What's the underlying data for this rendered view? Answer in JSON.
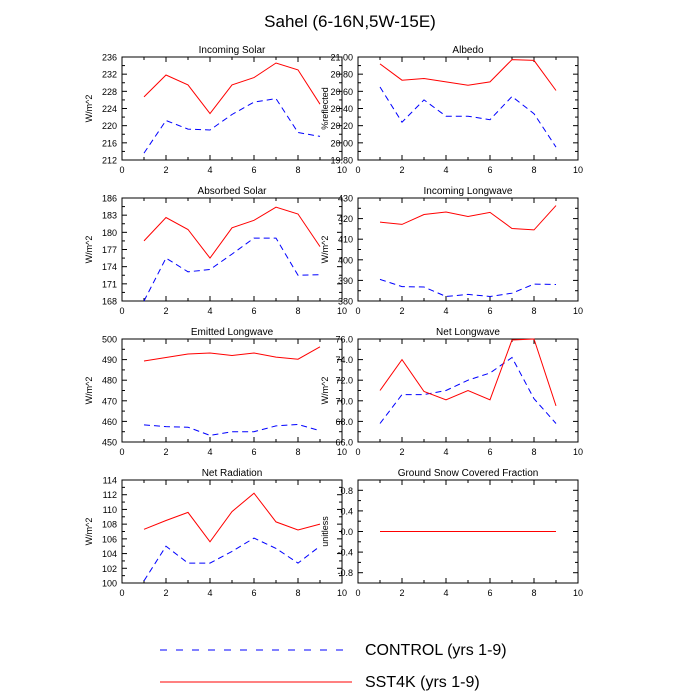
{
  "title": "Sahel (6-16N,5W-15E)",
  "legend": {
    "position": "bottom",
    "entries": [
      {
        "name": "CONTROL (yrs 1-9)",
        "color": "#0000ff",
        "style": "dashed"
      },
      {
        "name": "SST4K (yrs 1-9)",
        "color": "#ff0000",
        "style": "solid"
      }
    ]
  },
  "chart_data": [
    {
      "type": "line",
      "title": "Incoming Solar",
      "xlabel": "",
      "ylabel": "W/m^2",
      "xlim": [
        0,
        10
      ],
      "ylim": [
        212,
        236
      ],
      "xticks": [
        "0",
        "2",
        "4",
        "6",
        "8",
        "10"
      ],
      "yticks": [
        "212",
        "216",
        "220",
        "224",
        "228",
        "232",
        "236"
      ],
      "x": [
        1,
        2,
        3,
        4,
        5,
        6,
        7,
        8,
        9
      ],
      "series": [
        {
          "name": "CONTROL (yrs 1-9)",
          "values": [
            213.6,
            221.2,
            219.2,
            219.0,
            222.6,
            225.5,
            226.3,
            218.4,
            217.5
          ]
        },
        {
          "name": "SST4K (yrs 1-9)",
          "values": [
            226.7,
            231.8,
            229.5,
            222.8,
            229.5,
            231.2,
            234.6,
            233.0,
            225.0
          ]
        }
      ]
    },
    {
      "type": "line",
      "title": "Albedo",
      "xlabel": "",
      "ylabel": "%reflected",
      "xlim": [
        0,
        10
      ],
      "ylim": [
        19.8,
        21.0
      ],
      "xticks": [
        "0",
        "2",
        "4",
        "6",
        "8",
        "10"
      ],
      "yticks": [
        "19.80",
        "20.00",
        "20.20",
        "20.40",
        "20.60",
        "20.80",
        "21.00"
      ],
      "x": [
        1,
        2,
        3,
        4,
        5,
        6,
        7,
        8,
        9
      ],
      "series": [
        {
          "name": "CONTROL (yrs 1-9)",
          "values": [
            20.65,
            20.24,
            20.5,
            20.31,
            20.31,
            20.27,
            20.54,
            20.34,
            19.95
          ]
        },
        {
          "name": "SST4K (yrs 1-9)",
          "values": [
            20.92,
            20.73,
            20.75,
            20.71,
            20.67,
            20.71,
            20.97,
            20.96,
            20.61
          ]
        }
      ]
    },
    {
      "type": "line",
      "title": "Absorbed Solar",
      "xlabel": "",
      "ylabel": "W/m^2",
      "xlim": [
        0,
        10
      ],
      "ylim": [
        168,
        186
      ],
      "xticks": [
        "0",
        "2",
        "4",
        "6",
        "8",
        "10"
      ],
      "yticks": [
        "168",
        "171",
        "174",
        "177",
        "180",
        "183",
        "186"
      ],
      "x": [
        1,
        2,
        3,
        4,
        5,
        6,
        7,
        8,
        9
      ],
      "series": [
        {
          "name": "CONTROL (yrs 1-9)",
          "values": [
            168.0,
            175.5,
            173.1,
            173.5,
            176.2,
            179.0,
            179.0,
            172.5,
            172.6
          ]
        },
        {
          "name": "SST4K (yrs 1-9)",
          "values": [
            178.5,
            182.6,
            180.5,
            175.5,
            180.8,
            182.1,
            184.4,
            183.2,
            177.5
          ]
        }
      ]
    },
    {
      "type": "line",
      "title": "Incoming Longwave",
      "xlabel": "",
      "ylabel": "W/m^2",
      "xlim": [
        0,
        10
      ],
      "ylim": [
        380,
        430
      ],
      "xticks": [
        "0",
        "2",
        "4",
        "6",
        "8",
        "10"
      ],
      "yticks": [
        "380",
        "390",
        "400",
        "410",
        "420",
        "430"
      ],
      "x": [
        1,
        2,
        3,
        4,
        5,
        6,
        7,
        8,
        9
      ],
      "series": [
        {
          "name": "CONTROL (yrs 1-9)",
          "values": [
            390.5,
            387.0,
            386.8,
            382.2,
            383.2,
            382.2,
            383.8,
            388.2,
            388.0
          ]
        },
        {
          "name": "SST4K (yrs 1-9)",
          "values": [
            418.3,
            417.2,
            422.0,
            423.2,
            421.0,
            423.0,
            415.2,
            414.5,
            426.3
          ]
        }
      ]
    },
    {
      "type": "line",
      "title": "Emitted Longwave",
      "xlabel": "",
      "ylabel": "W/m^2",
      "xlim": [
        0,
        10
      ],
      "ylim": [
        450,
        500
      ],
      "xticks": [
        "0",
        "2",
        "4",
        "6",
        "8",
        "10"
      ],
      "yticks": [
        "450",
        "460",
        "470",
        "480",
        "490",
        "500"
      ],
      "x": [
        1,
        2,
        3,
        4,
        5,
        6,
        7,
        8,
        9
      ],
      "series": [
        {
          "name": "CONTROL (yrs 1-9)",
          "values": [
            458.3,
            457.5,
            457.2,
            453.2,
            455.0,
            455.0,
            457.8,
            458.5,
            455.5
          ]
        },
        {
          "name": "SST4K (yrs 1-9)",
          "values": [
            489.3,
            491.0,
            492.7,
            493.2,
            492.0,
            493.2,
            491.2,
            490.2,
            496.2
          ]
        }
      ]
    },
    {
      "type": "line",
      "title": "Net Longwave",
      "xlabel": "",
      "ylabel": "W/m^2",
      "xlim": [
        0,
        10
      ],
      "ylim": [
        66.0,
        76.0
      ],
      "xticks": [
        "0",
        "2",
        "4",
        "6",
        "8",
        "10"
      ],
      "yticks": [
        "66.0",
        "68.0",
        "70.0",
        "72.0",
        "74.0",
        "76.0"
      ],
      "x": [
        1,
        2,
        3,
        4,
        5,
        6,
        7,
        8,
        9
      ],
      "series": [
        {
          "name": "CONTROL (yrs 1-9)",
          "values": [
            67.8,
            70.6,
            70.6,
            71.0,
            72.0,
            72.7,
            74.2,
            70.2,
            67.8
          ]
        },
        {
          "name": "SST4K (yrs 1-9)",
          "values": [
            71.0,
            74.0,
            70.9,
            70.1,
            71.0,
            70.1,
            75.9,
            76.0,
            69.5
          ]
        }
      ]
    },
    {
      "type": "line",
      "title": "Net Radiation",
      "xlabel": "",
      "ylabel": "W/m^2",
      "xlim": [
        0,
        10
      ],
      "ylim": [
        100,
        114
      ],
      "xticks": [
        "0",
        "2",
        "4",
        "6",
        "8",
        "10"
      ],
      "yticks": [
        "100",
        "102",
        "104",
        "106",
        "108",
        "110",
        "112",
        "114"
      ],
      "x": [
        1,
        2,
        3,
        4,
        5,
        6,
        7,
        8,
        9
      ],
      "series": [
        {
          "name": "CONTROL (yrs 1-9)",
          "values": [
            100.3,
            105.0,
            102.7,
            102.7,
            104.3,
            106.1,
            104.7,
            102.7,
            105.0
          ]
        },
        {
          "name": "SST4K (yrs 1-9)",
          "values": [
            107.3,
            108.5,
            109.6,
            105.6,
            109.7,
            112.2,
            108.3,
            107.2,
            108.0
          ]
        }
      ]
    },
    {
      "type": "line",
      "title": "Ground Snow Covered Fraction",
      "xlabel": "",
      "ylabel": "unitless",
      "xlim": [
        0,
        10
      ],
      "ylim": [
        -1.0,
        1.0
      ],
      "xticks": [
        "0",
        "2",
        "4",
        "6",
        "8",
        "10"
      ],
      "yticks": [
        "-0.8",
        "-0.4",
        "0.0",
        "0.4",
        "0.8"
      ],
      "x": [
        1,
        2,
        3,
        4,
        5,
        6,
        7,
        8,
        9
      ],
      "series": [
        {
          "name": "CONTROL (yrs 1-9)",
          "values": [
            0,
            0,
            0,
            0,
            0,
            0,
            0,
            0,
            0
          ]
        },
        {
          "name": "SST4K (yrs 1-9)",
          "values": [
            0,
            0,
            0,
            0,
            0,
            0,
            0,
            0,
            0
          ]
        }
      ]
    }
  ]
}
